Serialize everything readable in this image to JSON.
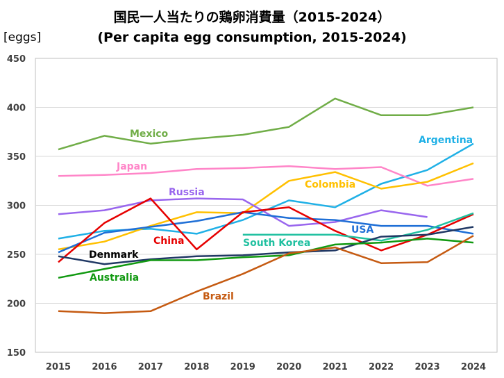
{
  "chart_data": {
    "type": "line",
    "title": "国民一人当たりの鶏卵消費量（2015-2024）",
    "subtitle": "(Per capita egg consumption, 2015-2024)",
    "ylabel": "[eggs]",
    "xlabel": "",
    "ylim": [
      150,
      450
    ],
    "yticks": [
      150,
      200,
      250,
      300,
      350,
      400,
      450
    ],
    "categories": [
      "2015",
      "2016",
      "2017",
      "2018",
      "2019",
      "2020",
      "2021",
      "2022",
      "2023",
      "2024"
    ],
    "grid": true,
    "legend": "inline labels",
    "series": [
      {
        "name": "Mexico",
        "color": "#70ad47",
        "values": [
          357,
          371,
          363,
          368,
          372,
          380,
          409,
          392,
          392,
          400
        ]
      },
      {
        "name": "Argentina",
        "color": "#1fb0e6",
        "values": [
          266,
          274,
          276,
          271,
          285,
          305,
          298,
          322,
          336,
          363
        ]
      },
      {
        "name": "Japan",
        "color": "#ff85c8",
        "values": [
          330,
          331,
          333,
          337,
          338,
          340,
          337,
          339,
          320,
          327
        ]
      },
      {
        "name": "Colombia",
        "color": "#ffc000",
        "values": [
          255,
          263,
          279,
          293,
          292,
          325,
          334,
          317,
          324,
          343
        ]
      },
      {
        "name": "Russia",
        "color": "#9966ee",
        "values": [
          291,
          295,
          305,
          307,
          306,
          279,
          283,
          295,
          288,
          null
        ]
      },
      {
        "name": "USA",
        "color": "#1f6fd6",
        "values": [
          252,
          272,
          278,
          284,
          293,
          287,
          285,
          279,
          279,
          271
        ]
      },
      {
        "name": "China",
        "color": "#e60000",
        "values": [
          242,
          282,
          307,
          255,
          293,
          298,
          274,
          254,
          270,
          291
        ]
      },
      {
        "name": "South Korea",
        "color": "#20c0a0",
        "values": [
          null,
          null,
          null,
          null,
          270,
          270,
          270,
          264,
          275,
          292
        ]
      },
      {
        "name": "Denmark",
        "color": "#203864",
        "values": [
          248,
          240,
          245,
          248,
          249,
          252,
          254,
          268,
          270,
          278
        ]
      },
      {
        "name": "Australia",
        "color": "#119911",
        "values": [
          226,
          235,
          244,
          244,
          247,
          249,
          260,
          262,
          266,
          262
        ]
      },
      {
        "name": "Brazil",
        "color": "#c55a11",
        "values": [
          192,
          190,
          192,
          212,
          230,
          251,
          257,
          241,
          242,
          269
        ]
      }
    ],
    "labels": [
      {
        "text": "Mexico",
        "color": "#70ad47"
      },
      {
        "text": "Argentina",
        "color": "#1fb0e6"
      },
      {
        "text": "Japan",
        "color": "#ff85c8"
      },
      {
        "text": "Colombia",
        "color": "#ffc000"
      },
      {
        "text": "Russia",
        "color": "#9966ee"
      },
      {
        "text": "USA",
        "color": "#1f6fd6"
      },
      {
        "text": "China",
        "color": "#e60000"
      },
      {
        "text": "South Korea",
        "color": "#20c0a0"
      },
      {
        "text": "Denmark",
        "color": "#000000"
      },
      {
        "text": "Australia",
        "color": "#119911"
      },
      {
        "text": "Brazil",
        "color": "#c55a11"
      }
    ]
  }
}
